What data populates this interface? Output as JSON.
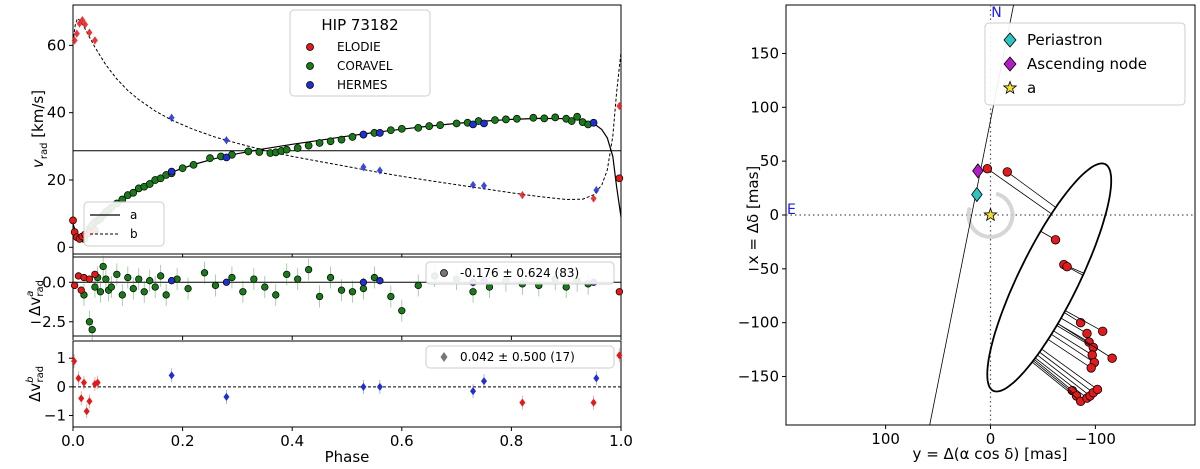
{
  "colors": {
    "elodie": "#e31a1c",
    "coravel": "#1a7a1a",
    "hermes": "#1f2fd0",
    "periastron": "#2ec4c4",
    "node": "#b21cc4",
    "star": "#f2e02a",
    "axis_text": "#000000",
    "cardinal": "#1a1aff"
  },
  "chart_data": [
    {
      "type": "scatter",
      "name": "RV curve",
      "title": "HIP 73182",
      "xlabel": "",
      "ylabel": "v_rad [km/s]",
      "ylabel_main": "v",
      "ylabel_sub": "rad",
      "ylabel_unit": " [km/s]",
      "xlim": [
        0.0,
        1.0
      ],
      "ylim": [
        -2,
        72
      ],
      "yticks": [
        0,
        20,
        40,
        60
      ],
      "ytick_labels": [
        "0",
        "20",
        "40",
        "60"
      ],
      "gamma": 28.7,
      "legend": {
        "title": "HIP 73182",
        "placement": "top-center",
        "entries": [
          "ELODIE",
          "CORAVEL",
          "HERMES"
        ]
      },
      "line_legend": {
        "placement": "bottom-left",
        "entries": [
          "a",
          "b"
        ]
      },
      "model_a": {
        "x": [
          0.0,
          0.005,
          0.01,
          0.02,
          0.03,
          0.04,
          0.05,
          0.06,
          0.08,
          0.1,
          0.12,
          0.15,
          0.18,
          0.22,
          0.26,
          0.3,
          0.35,
          0.4,
          0.45,
          0.5,
          0.55,
          0.6,
          0.65,
          0.7,
          0.75,
          0.8,
          0.85,
          0.9,
          0.93,
          0.95,
          0.965,
          0.975,
          0.985,
          0.992,
          1.0
        ],
        "y": [
          7,
          4.5,
          3.5,
          3.8,
          5.2,
          6.8,
          8.6,
          10.3,
          13.2,
          15.6,
          17.6,
          20.2,
          22.3,
          24.6,
          26.4,
          27.8,
          29.3,
          30.6,
          31.8,
          33.0,
          34.1,
          35.1,
          36.0,
          36.8,
          37.5,
          38.0,
          38.3,
          38.2,
          37.7,
          36.8,
          35.0,
          32.5,
          27.0,
          18.0,
          9.0
        ]
      },
      "model_b": {
        "x": [
          0.0,
          0.004,
          0.008,
          0.012,
          0.02,
          0.03,
          0.04,
          0.05,
          0.06,
          0.08,
          0.1,
          0.12,
          0.15,
          0.18,
          0.22,
          0.26,
          0.3,
          0.35,
          0.4,
          0.45,
          0.5,
          0.55,
          0.6,
          0.65,
          0.7,
          0.75,
          0.8,
          0.85,
          0.9,
          0.93,
          0.95,
          0.965,
          0.975,
          0.985,
          0.992,
          1.0
        ],
        "y": [
          61,
          66,
          68,
          67.5,
          65.5,
          62.5,
          59.5,
          56.8,
          54.2,
          50.0,
          46.6,
          43.9,
          40.5,
          37.8,
          35.0,
          32.7,
          30.9,
          28.8,
          27.0,
          25.5,
          24.0,
          22.5,
          21.1,
          19.8,
          18.6,
          17.4,
          16.2,
          15.1,
          14.2,
          14.3,
          15.6,
          18.5,
          23.0,
          33.0,
          46.0,
          58.0
        ]
      },
      "series": [
        {
          "name": "ELODIE",
          "component_a": {
            "x": [
              0.0,
              0.003,
              0.007,
              0.012,
              0.017,
              0.022,
              0.03,
              0.04,
              0.997
            ],
            "y": [
              8,
              4.5,
              3,
              2.5,
              3.2,
              3.8,
              4.2,
              5.0,
              20.5
            ]
          },
          "component_b": {
            "x": [
              0.003,
              0.007,
              0.012,
              0.017,
              0.022,
              0.03,
              0.04,
              0.82,
              0.95,
              0.997
            ],
            "y": [
              61.5,
              63.5,
              66.5,
              67.5,
              66.2,
              63.8,
              61.5,
              15.5,
              14.5,
              42
            ]
          }
        },
        {
          "name": "CORAVEL",
          "component_a": {
            "x": [
              0.02,
              0.025,
              0.03,
              0.035,
              0.04,
              0.045,
              0.05,
              0.055,
              0.06,
              0.065,
              0.07,
              0.08,
              0.09,
              0.1,
              0.11,
              0.12,
              0.13,
              0.14,
              0.15,
              0.16,
              0.17,
              0.18,
              0.2,
              0.22,
              0.25,
              0.27,
              0.29,
              0.32,
              0.34,
              0.36,
              0.37,
              0.38,
              0.39,
              0.41,
              0.43,
              0.45,
              0.47,
              0.49,
              0.51,
              0.53,
              0.55,
              0.58,
              0.6,
              0.63,
              0.65,
              0.67,
              0.7,
              0.72,
              0.74,
              0.77,
              0.79,
              0.81,
              0.84,
              0.86,
              0.88,
              0.9,
              0.91,
              0.92,
              0.93,
              0.94
            ],
            "y": [
              2.5,
              4.0,
              5.5,
              6.5,
              7.5,
              8.0,
              8.5,
              9.5,
              10.5,
              11.0,
              11.8,
              13.0,
              14.2,
              15.5,
              16.2,
              17.5,
              18.0,
              18.8,
              20.0,
              20.5,
              21.5,
              22.0,
              23.5,
              24.5,
              26.5,
              27.0,
              27.5,
              28.5,
              28.3,
              28.0,
              28.2,
              28.6,
              29.0,
              29.5,
              30.2,
              31.0,
              31.5,
              32.0,
              32.8,
              33.5,
              34.0,
              34.8,
              35.2,
              35.5,
              36.0,
              36.3,
              36.8,
              37.0,
              37.5,
              37.8,
              38.0,
              38.2,
              38.5,
              38.3,
              38.6,
              38.2,
              37.5,
              38.8,
              37.2,
              36.5
            ]
          }
        },
        {
          "name": "HERMES",
          "component_a": {
            "x": [
              0.18,
              0.28,
              0.53,
              0.56,
              0.73,
              0.75,
              0.95
            ],
            "y": [
              22.5,
              26.7,
              33.5,
              34.0,
              36.5,
              36.8,
              37.0
            ]
          },
          "component_b": {
            "x": [
              0.18,
              0.28,
              0.53,
              0.56,
              0.73,
              0.75,
              0.955
            ],
            "y": [
              38.5,
              31.8,
              23.8,
              22.8,
              18.5,
              18.3,
              17.0
            ]
          }
        }
      ]
    },
    {
      "type": "scatter",
      "name": "Residuals a",
      "ylabel": "Δv^a_rad",
      "ylabel_main": "Δv",
      "ylabel_sup": "a",
      "ylabel_sub": "rad",
      "xlim": [
        0.0,
        1.0
      ],
      "ylim": [
        -3.4,
        1.6
      ],
      "yticks": [
        0.0,
        -2.5
      ],
      "ytick_labels": [
        "0.0",
        "−2.5"
      ],
      "zero_line": "solid",
      "stats_label": "-0.176 ± 0.624 (83)",
      "legend_placement": "top-right",
      "elodie": {
        "x": [
          0.003,
          0.01,
          0.015,
          0.02,
          0.03,
          0.04,
          0.997
        ],
        "y": [
          -0.2,
          0.4,
          -0.5,
          0.3,
          0.2,
          0.5,
          -0.6
        ]
      },
      "coravel": {
        "x": [
          0.02,
          0.03,
          0.035,
          0.04,
          0.045,
          0.05,
          0.055,
          0.06,
          0.065,
          0.07,
          0.08,
          0.09,
          0.1,
          0.11,
          0.12,
          0.13,
          0.14,
          0.15,
          0.16,
          0.17,
          0.19,
          0.21,
          0.24,
          0.26,
          0.29,
          0.31,
          0.33,
          0.35,
          0.37,
          0.39,
          0.41,
          0.43,
          0.45,
          0.47,
          0.49,
          0.51,
          0.53,
          0.55,
          0.58,
          0.6,
          0.63,
          0.66,
          0.7,
          0.73,
          0.76,
          0.79,
          0.82,
          0.85,
          0.88,
          0.9,
          0.92,
          0.94
        ],
        "y": [
          -0.8,
          -2.5,
          -3.0,
          -0.3,
          0.3,
          -0.6,
          1.0,
          0.2,
          -0.5,
          -0.3,
          0.5,
          -0.8,
          0.3,
          -0.4,
          0.2,
          -0.6,
          0.1,
          -0.3,
          0.4,
          -0.8,
          0.2,
          -0.4,
          0.6,
          -0.2,
          0.3,
          -0.6,
          0.2,
          -0.3,
          -0.8,
          0.5,
          0.2,
          0.8,
          -0.9,
          0.3,
          -0.5,
          -0.6,
          -0.4,
          0.3,
          -0.9,
          -1.8,
          -0.2,
          0.4,
          0.2,
          -0.6,
          -0.3,
          0.1,
          -0.1,
          -0.2,
          0.2,
          -0.3,
          0.1,
          -0.1
        ]
      },
      "hermes": {
        "x": [
          0.18,
          0.28,
          0.53,
          0.56,
          0.73,
          0.75,
          0.95
        ],
        "y": [
          0.1,
          0.0,
          0.0,
          0.1,
          0.0,
          0.1,
          0.0
        ]
      }
    },
    {
      "type": "scatter",
      "name": "Residuals b",
      "xlabel": "Phase",
      "ylabel": "Δv^b_rad",
      "ylabel_main": "Δv",
      "ylabel_sup": "b",
      "ylabel_sub": "rad",
      "xlim": [
        0.0,
        1.0
      ],
      "ylim": [
        -1.4,
        1.6
      ],
      "xticks": [
        0.0,
        0.2,
        0.4,
        0.6,
        0.8,
        1.0
      ],
      "xtick_labels": [
        "0.0",
        "0.2",
        "0.4",
        "0.6",
        "0.8",
        "1.0"
      ],
      "yticks": [
        1,
        0,
        -1
      ],
      "ytick_labels": [
        "1",
        "0",
        "−1"
      ],
      "zero_line": "dashed",
      "stats_label": "0.042 ± 0.500 (17)",
      "legend_placement": "top-right",
      "elodie": {
        "x": [
          0.002,
          0.01,
          0.015,
          0.02,
          0.025,
          0.03,
          0.04,
          0.045,
          0.82,
          0.95,
          0.997
        ],
        "y": [
          0.9,
          0.3,
          -0.4,
          0.15,
          -0.85,
          -0.5,
          0.1,
          0.15,
          -0.55,
          -0.55,
          1.1
        ]
      },
      "hermes": {
        "x": [
          0.18,
          0.28,
          0.53,
          0.56,
          0.73,
          0.75,
          0.955
        ],
        "y": [
          0.4,
          -0.35,
          0.0,
          0.0,
          -0.15,
          0.2,
          0.3
        ]
      }
    },
    {
      "type": "scatter",
      "name": "Astrometric orbit",
      "xlabel": "y = Δ(α cos δ) [mas]",
      "ylabel": "x = Δδ [mas]",
      "xlim": [
        195,
        -195
      ],
      "ylim": [
        -195,
        195
      ],
      "xticks": [
        100,
        0,
        -100
      ],
      "xtick_labels": [
        "100",
        "0",
        "−100"
      ],
      "yticks": [
        150,
        100,
        50,
        0,
        -50,
        -100,
        -150
      ],
      "ytick_labels": [
        "150",
        "100",
        "50",
        "0",
        "−50",
        "−100",
        "−150"
      ],
      "compass": {
        "north": "N",
        "east": "E"
      },
      "legend": {
        "placement": "top-right",
        "entries": [
          "Periastron",
          "Ascending node",
          "a"
        ]
      },
      "periastron": {
        "y": 13,
        "x": 19
      },
      "ascending_node": {
        "y": 12,
        "x": 41
      },
      "star_a": {
        "y": 0,
        "x": 0
      },
      "node_line": {
        "y": [
          58,
          -22,
          19
        ],
        "x": [
          -195,
          195,
          0
        ]
      },
      "observations": {
        "y": [
          3,
          -16,
          -62,
          -70,
          -73,
          -86,
          -92,
          -94,
          -98,
          -97,
          -99,
          -96,
          -107,
          -116,
          -78,
          -82,
          -86,
          -92,
          -95,
          -98,
          -102
        ],
        "x": [
          43,
          40,
          -23,
          -46,
          -48,
          -100,
          -110,
          -118,
          -123,
          -130,
          -137,
          -142,
          -108,
          -133,
          -163,
          -168,
          -173,
          -170,
          -168,
          -165,
          -162
        ]
      }
    }
  ]
}
